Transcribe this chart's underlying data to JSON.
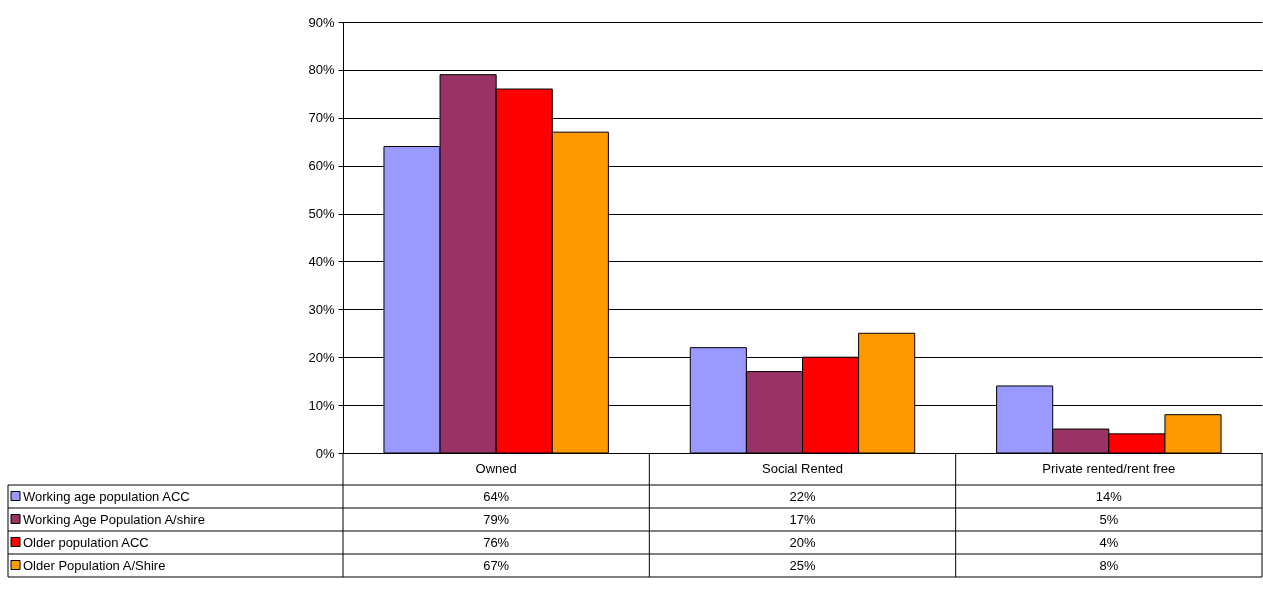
{
  "chart_data": {
    "type": "bar",
    "categories": [
      "Owned",
      "Social Rented",
      "Private rented/rent free"
    ],
    "series": [
      {
        "name": "Working age population ACC",
        "color": "#9999ff",
        "values": [
          64,
          22,
          14
        ],
        "value_labels": [
          "64%",
          "22%",
          "14%"
        ]
      },
      {
        "name": "Working Age Population A/shire",
        "color": "#993366",
        "values": [
          79,
          17,
          5
        ],
        "value_labels": [
          "79%",
          "17%",
          "5%"
        ]
      },
      {
        "name": "Older population ACC",
        "color": "#ff0000",
        "values": [
          76,
          20,
          4
        ],
        "value_labels": [
          "76%",
          "20%",
          "4%"
        ]
      },
      {
        "name": "Older Population A/Shire",
        "color": "#ff9900",
        "values": [
          67,
          25,
          8
        ],
        "value_labels": [
          "67%",
          "25%",
          "8%"
        ]
      }
    ],
    "ylim": [
      0,
      90
    ],
    "yticks": [
      {
        "value": 0,
        "label": "0%"
      },
      {
        "value": 10,
        "label": "10%"
      },
      {
        "value": 20,
        "label": "20%"
      },
      {
        "value": 30,
        "label": "30%"
      },
      {
        "value": 40,
        "label": "40%"
      },
      {
        "value": 50,
        "label": "50%"
      },
      {
        "value": 60,
        "label": "60%"
      },
      {
        "value": 70,
        "label": "70%"
      },
      {
        "value": 80,
        "label": "80%"
      },
      {
        "value": 90,
        "label": "90%"
      }
    ],
    "grid": "y",
    "legend": "bottom left"
  }
}
